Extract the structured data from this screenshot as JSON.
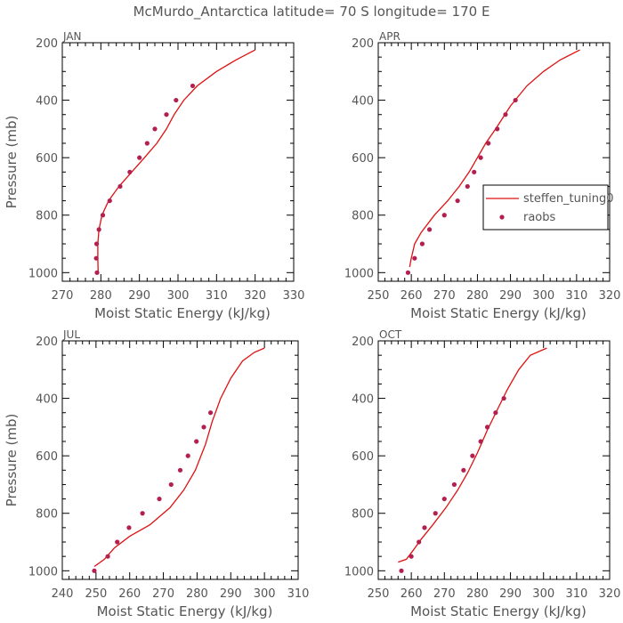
{
  "title": "McMurdo_Antarctica  latitude= 70 S longitude= 170 E",
  "legend": {
    "placement": "inside APR panel, right",
    "entries": [
      {
        "label": "steffen_tuning0",
        "kind": "line",
        "color": "#dd1111"
      },
      {
        "label": "raobs",
        "kind": "marker",
        "color": "#b3204e"
      }
    ]
  },
  "colors": {
    "model": "#dd1111",
    "obs": "#b3204e",
    "axis": "#000000",
    "text": "#555555"
  },
  "chart_data": [
    {
      "type": "line",
      "panel": "JAN",
      "xlabel": "Moist Static Energy (kJ/kg)",
      "ylabel": "Pressure (mb)",
      "xlim": [
        270,
        330
      ],
      "ylim": [
        200,
        1030
      ],
      "y_inverted": true,
      "xticks": [
        270,
        280,
        290,
        300,
        310,
        320,
        330
      ],
      "yticks": [
        200,
        400,
        600,
        800,
        1000
      ],
      "series": [
        {
          "name": "steffen_tuning0",
          "style": "line",
          "x": [
            279.3,
            279.2,
            279.2,
            279.5,
            280.3,
            282.0,
            284.7,
            288.0,
            291.3,
            294.5,
            297.0,
            299.0,
            301.5,
            305.0,
            310.0,
            315.0,
            320.0
          ],
          "y": [
            1000,
            950,
            900,
            850,
            800,
            750,
            700,
            650,
            600,
            550,
            500,
            450,
            400,
            350,
            300,
            260,
            225
          ]
        },
        {
          "name": "raobs",
          "style": "marker",
          "x": [
            279.0,
            278.8,
            278.9,
            279.5,
            280.5,
            282.3,
            285.0,
            287.5,
            290.0,
            292.0,
            294.0,
            297.0,
            299.5,
            303.8
          ],
          "y": [
            1000,
            950,
            900,
            850,
            800,
            750,
            700,
            650,
            600,
            550,
            500,
            450,
            400,
            350
          ]
        }
      ]
    },
    {
      "type": "line",
      "panel": "APR",
      "xlabel": "Moist Static Energy (kJ/kg)",
      "ylabel": "",
      "xlim": [
        250,
        320
      ],
      "ylim": [
        200,
        1030
      ],
      "y_inverted": true,
      "xticks": [
        250,
        260,
        270,
        280,
        290,
        300,
        310,
        320
      ],
      "yticks": [
        200,
        400,
        600,
        800,
        1000
      ],
      "series": [
        {
          "name": "steffen_tuning0",
          "style": "line",
          "x": [
            259.5,
            260.0,
            261.0,
            263.0,
            267.0,
            271.0,
            274.5,
            277.5,
            280.0,
            282.5,
            285.5,
            290.0,
            295.0,
            300.0,
            305.0,
            311.0
          ],
          "y": [
            980,
            950,
            900,
            860,
            800,
            750,
            700,
            650,
            600,
            550,
            500,
            420,
            350,
            300,
            260,
            225
          ]
        },
        {
          "name": "raobs",
          "style": "marker",
          "x": [
            259.0,
            261.0,
            263.3,
            265.5,
            270.0,
            274.0,
            277.0,
            279.0,
            281.0,
            283.3,
            286.0,
            288.5,
            291.5
          ],
          "y": [
            1000,
            950,
            900,
            850,
            800,
            750,
            700,
            650,
            600,
            550,
            500,
            450,
            400
          ]
        }
      ]
    },
    {
      "type": "line",
      "panel": "JUL",
      "xlabel": "Moist Static Energy (kJ/kg)",
      "ylabel": "Pressure (mb)",
      "xlim": [
        240,
        310
      ],
      "ylim": [
        200,
        1030
      ],
      "y_inverted": true,
      "xticks": [
        240,
        250,
        260,
        270,
        280,
        290,
        300,
        310
      ],
      "yticks": [
        200,
        400,
        600,
        800,
        1000
      ],
      "series": [
        {
          "name": "steffen_tuning0",
          "style": "line",
          "x": [
            249.5,
            252.5,
            255.5,
            260.0,
            266.0,
            272.0,
            276.0,
            279.5,
            282.5,
            284.5,
            287.0,
            290.0,
            293.5,
            297.0,
            300.0
          ],
          "y": [
            985,
            960,
            920,
            880,
            840,
            780,
            720,
            650,
            560,
            480,
            400,
            330,
            270,
            240,
            225
          ]
        },
        {
          "name": "raobs",
          "style": "marker",
          "x": [
            249.5,
            253.5,
            256.3,
            259.8,
            263.8,
            268.8,
            272.3,
            275.0,
            277.3,
            279.8,
            282.0,
            284.0
          ],
          "y": [
            1000,
            950,
            900,
            850,
            800,
            750,
            700,
            650,
            600,
            550,
            500,
            450
          ]
        }
      ]
    },
    {
      "type": "line",
      "panel": "OCT",
      "xlabel": "Moist Static Energy (kJ/kg)",
      "ylabel": "",
      "xlim": [
        250,
        320
      ],
      "ylim": [
        200,
        1030
      ],
      "y_inverted": true,
      "xticks": [
        250,
        260,
        270,
        280,
        290,
        300,
        310,
        320
      ],
      "yticks": [
        200,
        400,
        600,
        800,
        1000
      ],
      "series": [
        {
          "name": "steffen_tuning0",
          "style": "line",
          "x": [
            256.0,
            258.5,
            260.5,
            263.0,
            266.5,
            270.5,
            274.0,
            277.0,
            280.0,
            283.0,
            286.0,
            289.0,
            292.5,
            296.0,
            301.0
          ],
          "y": [
            970,
            960,
            930,
            890,
            840,
            780,
            720,
            660,
            590,
            510,
            440,
            370,
            300,
            250,
            225
          ]
        },
        {
          "name": "raobs",
          "style": "marker",
          "x": [
            257.0,
            260.0,
            262.3,
            264.0,
            267.3,
            270.0,
            273.0,
            275.8,
            278.5,
            281.0,
            283.0,
            285.5,
            288.0
          ],
          "y": [
            1000,
            950,
            900,
            850,
            800,
            750,
            700,
            650,
            600,
            550,
            500,
            450,
            400
          ]
        }
      ]
    }
  ]
}
